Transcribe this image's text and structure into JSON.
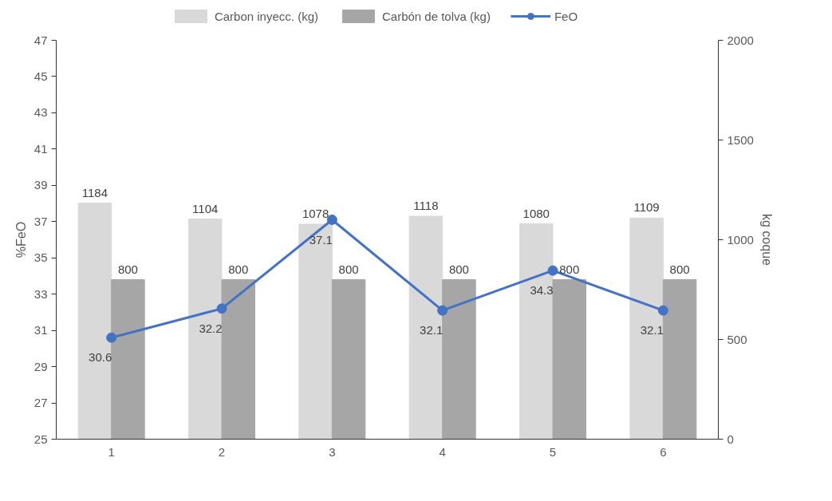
{
  "chart_data": {
    "type": "bar",
    "categories": [
      "1",
      "2",
      "3",
      "4",
      "5",
      "6"
    ],
    "series": [
      {
        "name": "Carbon inyecc. (kg)",
        "color": "#d9d9d9",
        "axis": "y2",
        "values": [
          1184,
          1104,
          1078,
          1118,
          1080,
          1109
        ]
      },
      {
        "name": "Carbón de tolva (kg)",
        "color": "#a6a6a6",
        "axis": "y2",
        "values": [
          800,
          800,
          800,
          800,
          800,
          800
        ]
      },
      {
        "name": "FeO",
        "type": "line",
        "color": "#4472c4",
        "marker": "circle",
        "values": [
          30.6,
          32.2,
          37.1,
          32.1,
          34.3,
          32.1
        ]
      }
    ],
    "ylabel": "%FeO",
    "y2label": "kg coque",
    "ylim": [
      25,
      47
    ],
    "yticks": [
      25,
      27,
      29,
      31,
      33,
      35,
      37,
      39,
      41,
      43,
      45,
      47
    ],
    "y2lim": [
      0,
      2000
    ],
    "y2ticks": [
      0,
      500,
      1000,
      1500,
      2000
    ],
    "grid": false,
    "legend": "top",
    "data_labels": true
  }
}
